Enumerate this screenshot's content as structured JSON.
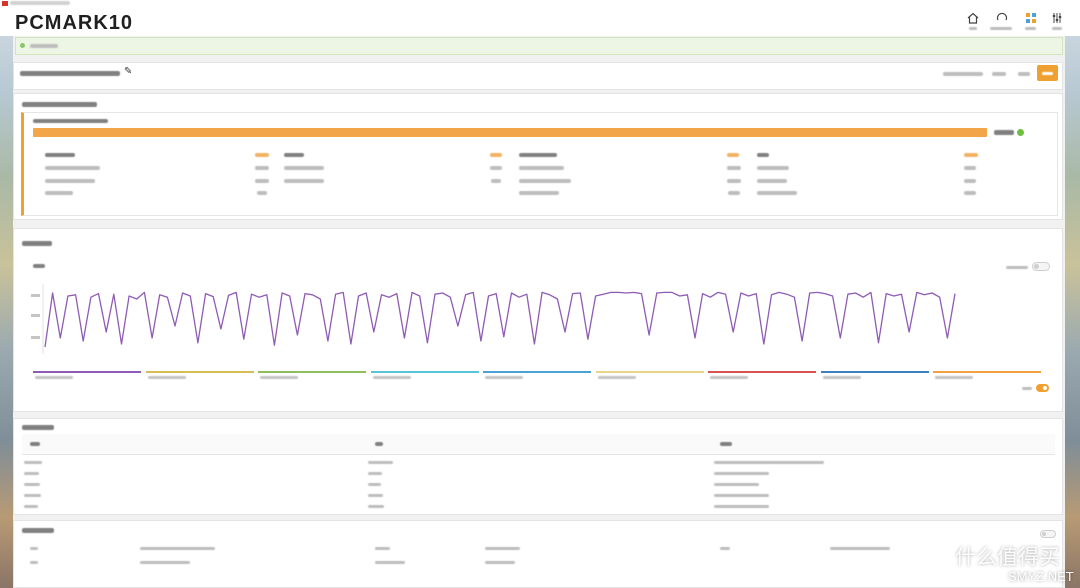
{
  "app": {
    "logo_brand": "PCMARK",
    "logo_version": "10"
  },
  "icons": {
    "home": "home-icon",
    "help": "help-icon",
    "apps": "apps-icon",
    "settings": "settings-icon",
    "notice": "info-icon",
    "check": "check-icon",
    "edit": "✎"
  },
  "colors": {
    "accent": "#f0a030",
    "success": "#6cbf3f",
    "notice_bg": "#edf5e4"
  },
  "result": {
    "score_bar_fill": 1.0
  },
  "chart_data": {
    "type": "line",
    "ylim": [
      0,
      100
    ],
    "series": [
      {
        "color": "#8e5bb5",
        "values": [
          5,
          95,
          20,
          90,
          92,
          15,
          88,
          94,
          30,
          93,
          10,
          90,
          85,
          96,
          20,
          92,
          88,
          40,
          95,
          90,
          12,
          94,
          89,
          35,
          91,
          96,
          18,
          93,
          88,
          92,
          8,
          95,
          90,
          25,
          94,
          92,
          85,
          15,
          93,
          96,
          10,
          90,
          95,
          30,
          92,
          88,
          94,
          20,
          96,
          90,
          12,
          93,
          95,
          88,
          40,
          92,
          96,
          15,
          90,
          94,
          22,
          95,
          88,
          93,
          10,
          96,
          92,
          85,
          30,
          94,
          95,
          18,
          90,
          93,
          96,
          96,
          95,
          96,
          94,
          25,
          95,
          96,
          96,
          90,
          92,
          20,
          94,
          88,
          96,
          93,
          30,
          95,
          90,
          94,
          10,
          92,
          96,
          93,
          88,
          15,
          95,
          96,
          94,
          90,
          20,
          93,
          95,
          88,
          96,
          12,
          94,
          90,
          93,
          30,
          96,
          92,
          95,
          88,
          20,
          94
        ]
      }
    ],
    "legend_colors": [
      "#8e5bb5",
      "#d9bd55",
      "#8fbf5a",
      "#5bc4d8",
      "#4aa3d4",
      "#e8d58a",
      "#d9534f",
      "#3f7fc4",
      "#f0a040"
    ]
  },
  "watermark": {
    "site_name": "什么值得买",
    "domain": "SMYZ.NET"
  }
}
